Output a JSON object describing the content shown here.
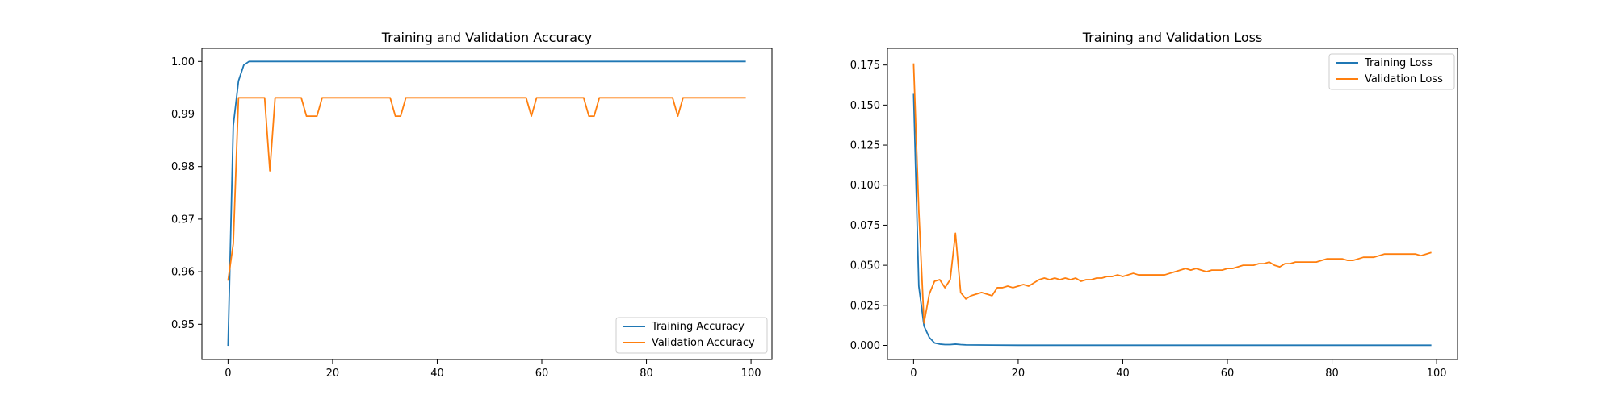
{
  "colors": {
    "training": "#1f77b4",
    "validation": "#ff7f0e"
  },
  "chart_data": [
    {
      "type": "line",
      "title": "Training and Validation Accuracy",
      "xlabel": "",
      "ylabel": "",
      "xlim": [
        -5,
        104
      ],
      "ylim": [
        0.9433,
        1.0025
      ],
      "x_ticks": [
        0,
        20,
        40,
        60,
        80,
        100
      ],
      "y_ticks": [
        0.95,
        0.96,
        0.97,
        0.98,
        0.99,
        1.0
      ],
      "y_tick_labels": [
        "0.95",
        "0.96",
        "0.97",
        "0.98",
        "0.99",
        "1.00"
      ],
      "grid": false,
      "legend_position": "lower-right",
      "series": [
        {
          "name": "Training Accuracy",
          "color": "#1f77b4",
          "x": [
            0,
            1,
            2,
            3,
            4,
            5,
            99
          ],
          "y": [
            0.9459,
            0.9878,
            0.9963,
            0.9993,
            1.0,
            1.0,
            1.0
          ]
        },
        {
          "name": "Validation Accuracy",
          "color": "#ff7f0e",
          "x": [
            0,
            1,
            2,
            7,
            8,
            9,
            14,
            15,
            17,
            18,
            31,
            32,
            33,
            34,
            57,
            58,
            59,
            68,
            69,
            70,
            71,
            85,
            86,
            87,
            99
          ],
          "y": [
            0.9583,
            0.9653,
            0.9931,
            0.9931,
            0.9792,
            0.9931,
            0.9931,
            0.9896,
            0.9896,
            0.9931,
            0.9931,
            0.9896,
            0.9896,
            0.9931,
            0.9931,
            0.9896,
            0.9931,
            0.9931,
            0.9896,
            0.9896,
            0.9931,
            0.9931,
            0.9896,
            0.9931,
            0.9931
          ]
        }
      ]
    },
    {
      "type": "line",
      "title": "Training and Validation Loss",
      "xlabel": "",
      "ylabel": "",
      "xlim": [
        -5,
        104
      ],
      "ylim": [
        -0.0088,
        0.1854
      ],
      "x_ticks": [
        0,
        20,
        40,
        60,
        80,
        100
      ],
      "y_ticks": [
        0.0,
        0.025,
        0.05,
        0.075,
        0.1,
        0.125,
        0.15,
        0.175
      ],
      "y_tick_labels": [
        "0.000",
        "0.025",
        "0.050",
        "0.075",
        "0.100",
        "0.125",
        "0.150",
        "0.175"
      ],
      "grid": false,
      "legend_position": "upper-right",
      "series": [
        {
          "name": "Training Loss",
          "color": "#1f77b4",
          "x": [
            0,
            1,
            2,
            3,
            4,
            5,
            6,
            7,
            8,
            9,
            10,
            15,
            20,
            99
          ],
          "y": [
            0.157,
            0.037,
            0.012,
            0.005,
            0.0015,
            0.0008,
            0.0005,
            0.0005,
            0.0008,
            0.0005,
            0.0003,
            0.0002,
            0.0001,
            0.0001
          ]
        },
        {
          "name": "Validation Loss",
          "color": "#ff7f0e",
          "x": [
            0,
            1,
            2,
            3,
            4,
            5,
            6,
            7,
            8,
            9,
            10,
            11,
            12,
            13,
            14,
            15,
            16,
            17,
            18,
            19,
            20,
            21,
            22,
            23,
            24,
            25,
            26,
            27,
            28,
            29,
            30,
            31,
            32,
            33,
            34,
            35,
            36,
            37,
            38,
            39,
            40,
            41,
            42,
            43,
            44,
            45,
            46,
            47,
            48,
            49,
            50,
            51,
            52,
            53,
            54,
            55,
            56,
            57,
            58,
            59,
            60,
            61,
            62,
            63,
            64,
            65,
            66,
            67,
            68,
            69,
            70,
            71,
            72,
            73,
            74,
            75,
            76,
            77,
            78,
            79,
            80,
            81,
            82,
            83,
            84,
            85,
            86,
            87,
            88,
            89,
            90,
            91,
            92,
            93,
            94,
            95,
            96,
            97,
            98,
            99
          ],
          "y": [
            0.176,
            0.084,
            0.014,
            0.032,
            0.04,
            0.041,
            0.036,
            0.041,
            0.07,
            0.033,
            0.029,
            0.031,
            0.032,
            0.033,
            0.032,
            0.031,
            0.036,
            0.036,
            0.037,
            0.036,
            0.037,
            0.038,
            0.037,
            0.039,
            0.041,
            0.042,
            0.041,
            0.042,
            0.041,
            0.042,
            0.041,
            0.042,
            0.04,
            0.041,
            0.041,
            0.042,
            0.042,
            0.043,
            0.043,
            0.044,
            0.043,
            0.044,
            0.045,
            0.044,
            0.044,
            0.044,
            0.044,
            0.044,
            0.044,
            0.045,
            0.046,
            0.047,
            0.048,
            0.047,
            0.048,
            0.047,
            0.046,
            0.047,
            0.047,
            0.047,
            0.048,
            0.048,
            0.049,
            0.05,
            0.05,
            0.05,
            0.051,
            0.051,
            0.052,
            0.05,
            0.049,
            0.051,
            0.051,
            0.052,
            0.052,
            0.052,
            0.052,
            0.052,
            0.053,
            0.054,
            0.054,
            0.054,
            0.054,
            0.053,
            0.053,
            0.054,
            0.055,
            0.055,
            0.055,
            0.056,
            0.057,
            0.057,
            0.057,
            0.057,
            0.057,
            0.057,
            0.057,
            0.056,
            0.057,
            0.058
          ]
        }
      ]
    }
  ]
}
